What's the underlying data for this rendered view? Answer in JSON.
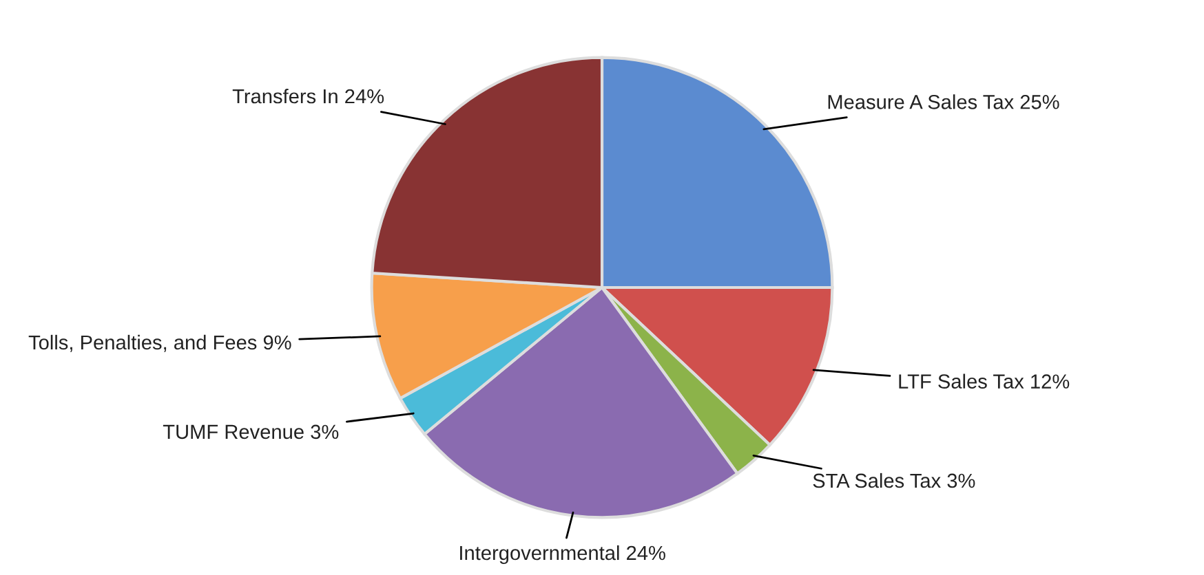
{
  "chart_data": {
    "type": "pie",
    "categories": [
      "Measure A Sales Tax",
      "LTF Sales Tax",
      "STA Sales Tax",
      "Intergovernmental",
      "TUMF Revenue",
      "Tolls, Penalties, and Fees",
      "Transfers In"
    ],
    "values": [
      25,
      12,
      3,
      24,
      3,
      9,
      24
    ],
    "colors": [
      "#5b8bd0",
      "#d0504d",
      "#8cb34a",
      "#8a6bb0",
      "#4bbbd9",
      "#f79f4b",
      "#883333"
    ],
    "value_labels": [
      "25%",
      "12%",
      "3%",
      "24%",
      "3%",
      "9%",
      "24%"
    ],
    "legend": false
  }
}
